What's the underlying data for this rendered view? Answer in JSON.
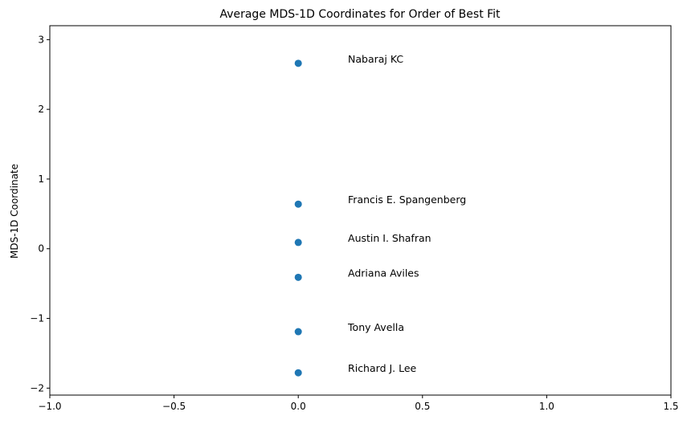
{
  "chart_data": {
    "type": "scatter",
    "title": "Average MDS-1D Coordinates for Order of Best Fit",
    "xlabel": "",
    "ylabel": "MDS-1D Coordinate",
    "xlim": [
      -1.0,
      1.5
    ],
    "ylim": [
      -2.1,
      3.2
    ],
    "xticks": [
      -1.0,
      -0.5,
      0.0,
      0.5,
      1.0,
      1.5
    ],
    "xtick_labels": [
      "−1.0",
      "−0.5",
      "0.0",
      "0.5",
      "1.0",
      "1.5"
    ],
    "yticks": [
      -2,
      -1,
      0,
      1,
      2,
      3
    ],
    "ytick_labels": [
      "−2",
      "−1",
      "0",
      "1",
      "2",
      "3"
    ],
    "grid": false,
    "marker_color": "#1f77b4",
    "label_x": 0.2,
    "points": [
      {
        "label": "Nabaraj KC",
        "x": 0.0,
        "y": 2.66
      },
      {
        "label": "Francis E. Spangenberg",
        "x": 0.0,
        "y": 0.64
      },
      {
        "label": "Austin I. Shafran",
        "x": 0.0,
        "y": 0.09
      },
      {
        "label": "Adriana Aviles",
        "x": 0.0,
        "y": -0.41
      },
      {
        "label": "Tony Avella",
        "x": 0.0,
        "y": -1.19
      },
      {
        "label": "Richard J. Lee",
        "x": 0.0,
        "y": -1.78
      }
    ]
  }
}
